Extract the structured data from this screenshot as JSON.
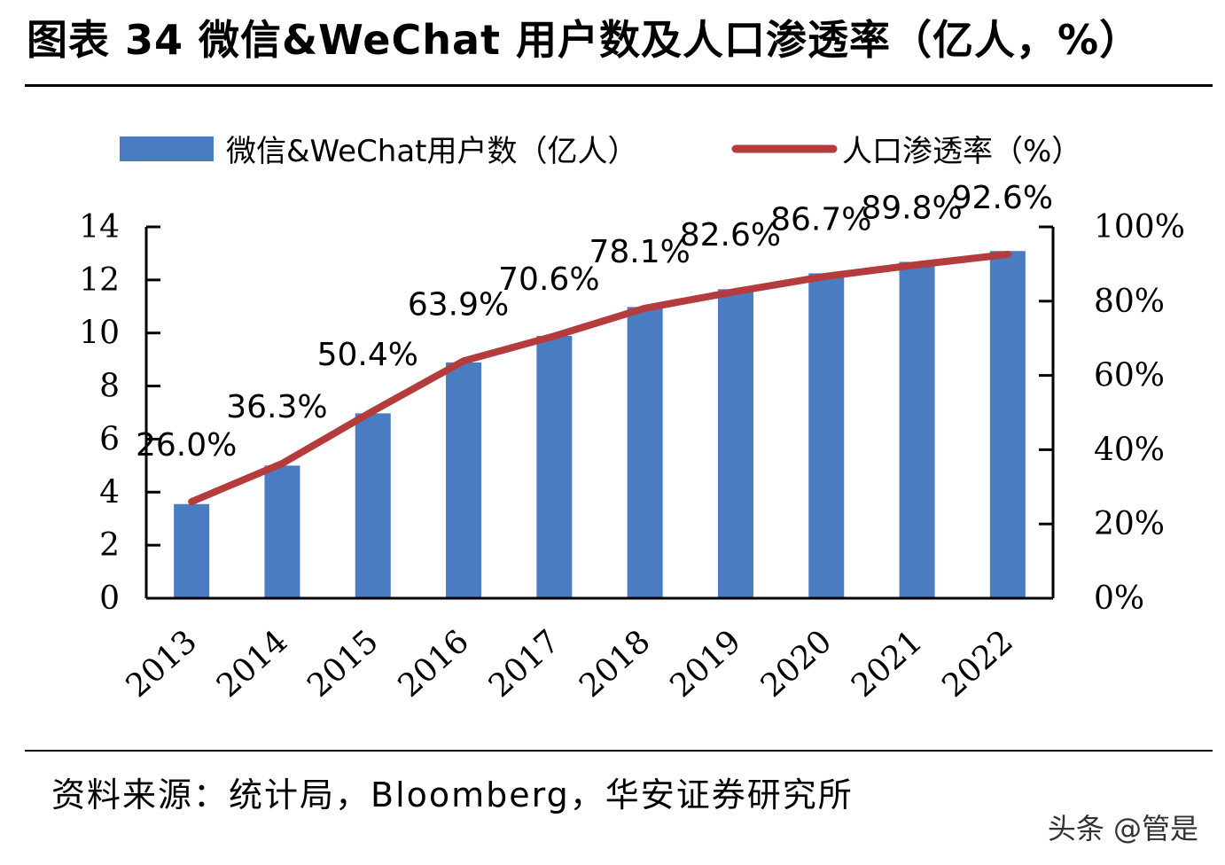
{
  "title": "图表 34  微信&WeChat 用户数及人口渗透率（亿人，%）",
  "source": "资料来源：统计局，Bloomberg，华安证券研究所",
  "watermark": "头条 @管是",
  "colors": {
    "bar": "#4a7cc2",
    "line": "#b43c3c",
    "axis": "#000000"
  },
  "chart_data": {
    "type": "bar",
    "categories": [
      "2013",
      "2014",
      "2015",
      "2016",
      "2017",
      "2018",
      "2019",
      "2020",
      "2021",
      "2022"
    ],
    "series": [
      {
        "name": "微信&WeChat用户数（亿人）",
        "type": "bar",
        "axis": "left",
        "values": [
          3.55,
          5.0,
          6.97,
          8.89,
          9.89,
          10.98,
          11.65,
          12.25,
          12.68,
          13.09
        ]
      },
      {
        "name": "人口渗透率（%）",
        "type": "line",
        "axis": "right",
        "values": [
          26.0,
          36.3,
          50.4,
          63.9,
          70.6,
          78.1,
          82.6,
          86.7,
          89.8,
          92.6
        ],
        "labels": [
          "26.0%",
          "36.3%",
          "50.4%",
          "63.9%",
          "70.6%",
          "78.1%",
          "82.6%",
          "86.7%",
          "89.8%",
          "92.6%"
        ]
      }
    ],
    "left_axis": {
      "ylim": [
        0,
        14
      ],
      "ticks": [
        0,
        2,
        4,
        6,
        8,
        10,
        12,
        14
      ],
      "tick_labels": [
        "0",
        "2",
        "4",
        "6",
        "8",
        "10",
        "12",
        "14"
      ]
    },
    "right_axis": {
      "ylim": [
        0,
        100
      ],
      "ticks": [
        0,
        20,
        40,
        60,
        80,
        100
      ],
      "tick_labels": [
        "0%",
        "20%",
        "40%",
        "60%",
        "80%",
        "100%"
      ]
    },
    "legend_position": "top"
  }
}
